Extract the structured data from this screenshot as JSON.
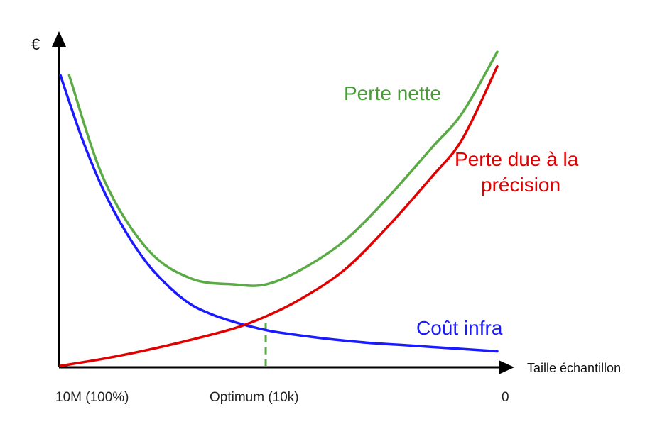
{
  "chart_data": {
    "type": "line",
    "title": "",
    "ylabel": "€",
    "xlabel": "Taille échantillon",
    "x_ticks": [
      {
        "label": "10M (100%)",
        "x": 0
      },
      {
        "label": "0",
        "x": 1
      }
    ],
    "ylim": [
      0,
      1
    ],
    "xlim": [
      0,
      1
    ],
    "grid": false,
    "series": [
      {
        "name": "Coût infra",
        "color": "#1a1aff",
        "x": [
          0,
          0.05,
          0.1,
          0.15,
          0.2,
          0.25,
          0.3,
          0.35,
          0.4,
          0.45,
          0.5,
          0.6,
          0.7,
          0.8,
          0.9,
          1.0
        ],
        "y": [
          1.0,
          0.78,
          0.6,
          0.46,
          0.35,
          0.27,
          0.21,
          0.175,
          0.15,
          0.13,
          0.115,
          0.095,
          0.08,
          0.07,
          0.06,
          0.05
        ]
      },
      {
        "name": "Perte due à la précision",
        "color": "#e00000",
        "x": [
          0,
          0.1,
          0.2,
          0.3,
          0.4,
          0.47,
          0.55,
          0.65,
          0.75,
          0.85,
          0.92,
          1.0
        ],
        "y": [
          0.0,
          0.025,
          0.055,
          0.09,
          0.13,
          0.17,
          0.23,
          0.33,
          0.48,
          0.65,
          0.78,
          1.03
        ]
      },
      {
        "name": "Perte nette",
        "color": "#5aaa46",
        "x": [
          0.02,
          0.1,
          0.2,
          0.3,
          0.4,
          0.47,
          0.55,
          0.65,
          0.75,
          0.85,
          0.92,
          1.0
        ],
        "y": [
          1.0,
          0.64,
          0.4,
          0.3,
          0.28,
          0.28,
          0.33,
          0.43,
          0.58,
          0.75,
          0.87,
          1.08
        ]
      }
    ],
    "annotations": [
      {
        "text": "Optimum (10k)",
        "x": 0.47,
        "color": "#7cbf6e",
        "style": "dashed-vertical"
      }
    ],
    "series_labels": [
      {
        "text": "Perte nette",
        "color": "#4a9a3a"
      },
      {
        "text_lines": [
          "Perte due à la",
          "précision"
        ],
        "color": "#e00000"
      },
      {
        "text": "Coût infra",
        "color": "#1a1aff"
      }
    ]
  }
}
